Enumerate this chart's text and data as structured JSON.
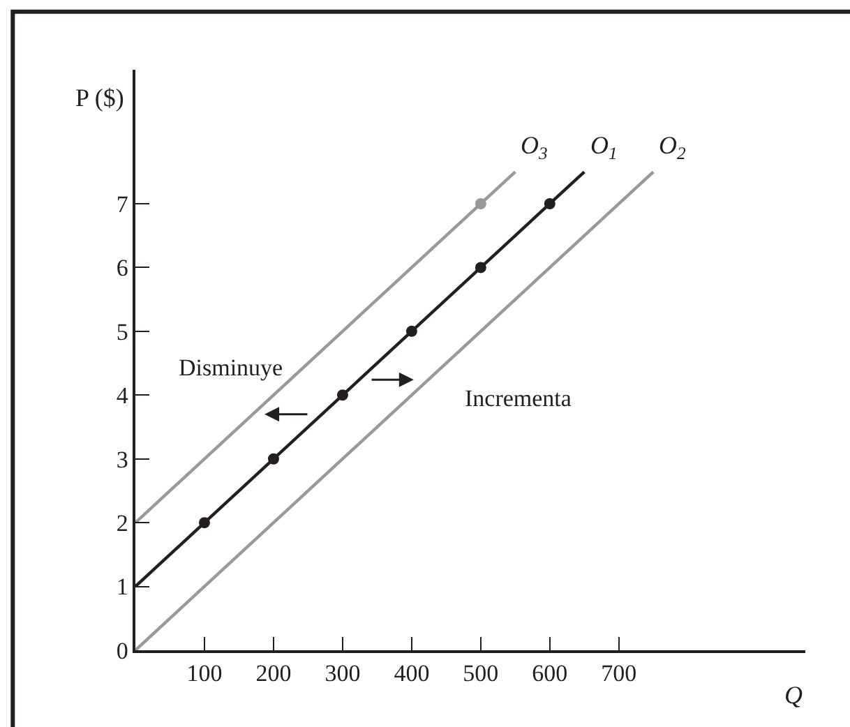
{
  "chart_data": {
    "type": "line",
    "xlabel": "Q",
    "ylabel": "P ($)",
    "xlim": [
      0,
      970
    ],
    "ylim": [
      0,
      9.1
    ],
    "xticks": [
      100,
      200,
      300,
      400,
      500,
      600,
      700
    ],
    "yticks": [
      0,
      1,
      2,
      3,
      4,
      5,
      6,
      7
    ],
    "grid": false,
    "legend": false,
    "marker": "none",
    "line_style": "solid",
    "series": [
      {
        "name": "O$_{3}$",
        "color": "#999999",
        "x": [
          0,
          550
        ],
        "values": [
          2,
          7.5
        ]
      },
      {
        "name": "O$_{1}$",
        "color": "#231f20",
        "x": [
          0,
          650
        ],
        "values": [
          1,
          7.5
        ]
      },
      {
        "name": "O$_{2}$",
        "color": "#999999",
        "x": [
          0,
          750
        ],
        "values": [
          0,
          7.5
        ]
      },
      {
        "type": "scatter",
        "marker": "circle",
        "color": "#231f20",
        "x": [
          100,
          200,
          300,
          400,
          500,
          600
        ],
        "values": [
          2,
          3,
          4,
          5,
          6,
          7
        ]
      },
      {
        "type": "scatter",
        "marker": "circle",
        "color": "#999999",
        "x": [
          500
        ],
        "values": [
          7
        ]
      }
    ],
    "annotations": [
      "Disminuye",
      "Incrementa"
    ]
  }
}
